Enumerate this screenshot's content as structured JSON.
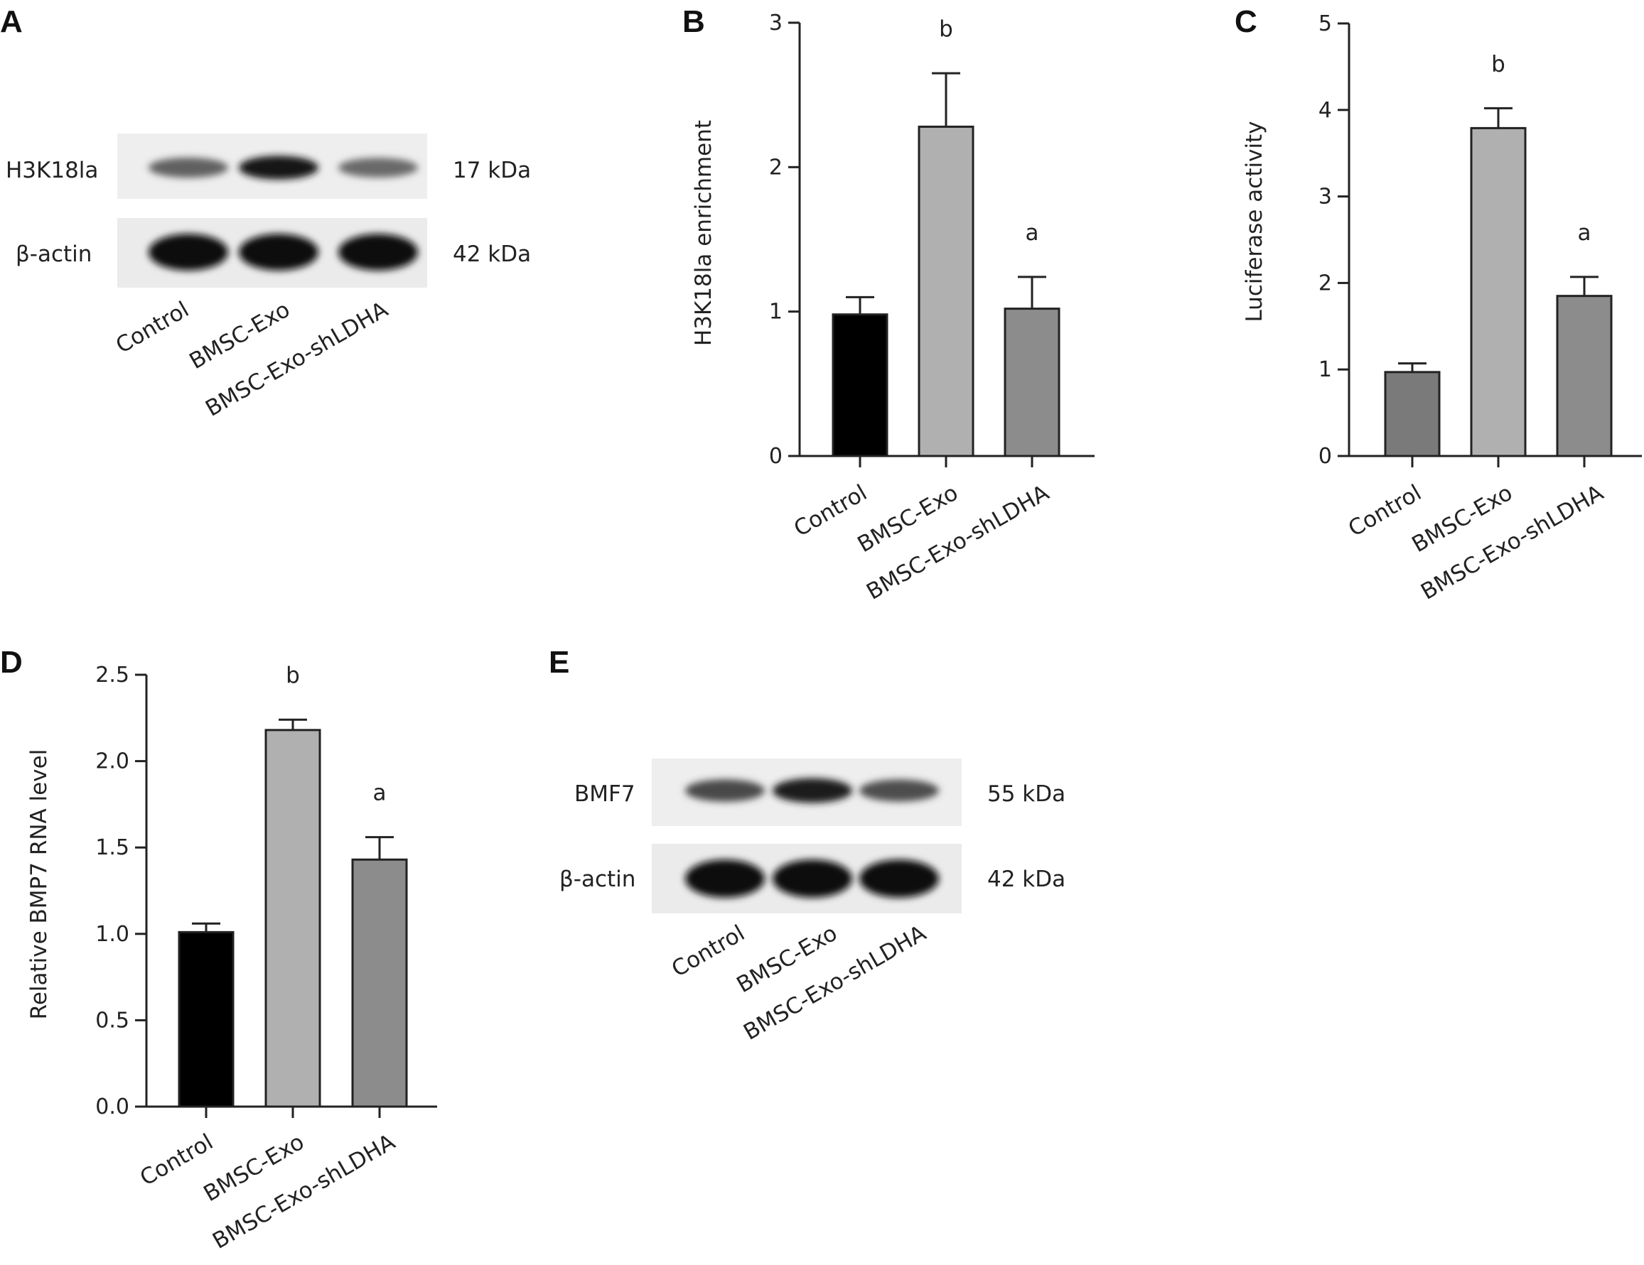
{
  "chart_data": [
    {
      "panel": "A",
      "type": "western-blot",
      "rows": [
        {
          "label": "H3K18la",
          "mw": "17 kDa",
          "intensities": [
            0.62,
            0.95,
            0.58
          ]
        },
        {
          "label": "β-actin",
          "mw": "42 kDa",
          "intensities": [
            0.98,
            0.98,
            0.98
          ]
        }
      ],
      "lanes": [
        "Control",
        "BMSC-Exo",
        "BMSC-Exo-shLDHA"
      ]
    },
    {
      "panel": "B",
      "type": "bar",
      "categories": [
        "Control",
        "BMSC-Exo",
        "BMSC-Exo-shLDHA"
      ],
      "values": [
        0.98,
        2.28,
        1.02
      ],
      "errors": [
        0.12,
        0.37,
        0.22
      ],
      "annotations": [
        "",
        "b",
        "a"
      ],
      "colors": [
        "#000000",
        "#b0b0b0",
        "#8c8c8c"
      ],
      "ylabel": "H3K18la enrichment",
      "ylim": [
        0,
        3
      ],
      "yticks": [
        "0",
        "1",
        "2",
        "3"
      ]
    },
    {
      "panel": "C",
      "type": "bar",
      "categories": [
        "Control",
        "BMSC-Exo",
        "BMSC-Exo-shLDHA"
      ],
      "values": [
        0.97,
        3.79,
        1.85
      ],
      "errors": [
        0.1,
        0.23,
        0.22
      ],
      "annotations": [
        "",
        "b",
        "a"
      ],
      "colors": [
        "#7a7a7a",
        "#b0b0b0",
        "#8c8c8c"
      ],
      "ylabel": "Luciferase activity",
      "ylim": [
        0,
        5
      ],
      "yticks": [
        "0",
        "1",
        "2",
        "3",
        "4",
        "5"
      ]
    },
    {
      "panel": "D",
      "type": "bar",
      "categories": [
        "Control",
        "BMSC-Exo",
        "BMSC-Exo-shLDHA"
      ],
      "values": [
        1.01,
        2.18,
        1.43
      ],
      "errors": [
        0.05,
        0.06,
        0.13
      ],
      "annotations": [
        "",
        "b",
        "a"
      ],
      "colors": [
        "#000000",
        "#b0b0b0",
        "#8c8c8c"
      ],
      "ylabel": "Relative BMP7 RNA level",
      "ylim": [
        0,
        2.5
      ],
      "yticks": [
        "0.0",
        "0.5",
        "1.0",
        "1.5",
        "2.0",
        "2.5"
      ]
    },
    {
      "panel": "E",
      "type": "western-blot",
      "rows": [
        {
          "label": "BMF7",
          "mw": "55 kDa",
          "intensities": [
            0.72,
            0.92,
            0.7
          ]
        },
        {
          "label": "β-actin",
          "mw": "42 kDa",
          "intensities": [
            0.98,
            0.98,
            0.98
          ]
        }
      ],
      "lanes": [
        "Control",
        "BMSC-Exo",
        "BMSC-Exo-shLDHA"
      ]
    }
  ]
}
